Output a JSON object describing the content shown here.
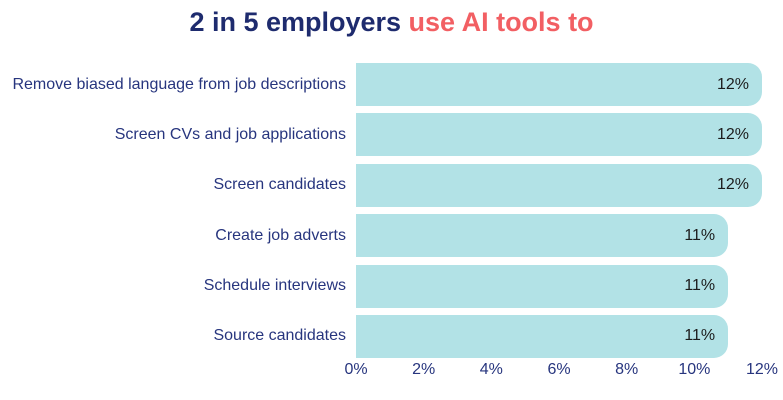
{
  "title": {
    "part1": "2 in 5 employers",
    "part2": " use AI tools to"
  },
  "colors": {
    "navy": "#1e2b6e",
    "coral": "#f25f63",
    "bar_fill": "#b2e2e6",
    "value_text": "#1c1c1c"
  },
  "chart_data": {
    "type": "bar",
    "orientation": "horizontal",
    "title": "2 in 5 employers use AI tools to",
    "categories": [
      "Remove biased language from job descriptions",
      "Screen CVs and job applications",
      "Screen candidates",
      "Create job adverts",
      "Schedule interviews",
      "Source candidates"
    ],
    "values": [
      12,
      12,
      12,
      11,
      11,
      11
    ],
    "value_labels": [
      "12%",
      "12%",
      "12%",
      "11%",
      "11%",
      "11%"
    ],
    "xlabel": "",
    "ylabel": "",
    "xlim": [
      0,
      12
    ],
    "x_ticks": [
      "0%",
      "2%",
      "4%",
      "6%",
      "8%",
      "10%",
      "12%"
    ],
    "grid": false,
    "legend": false
  }
}
